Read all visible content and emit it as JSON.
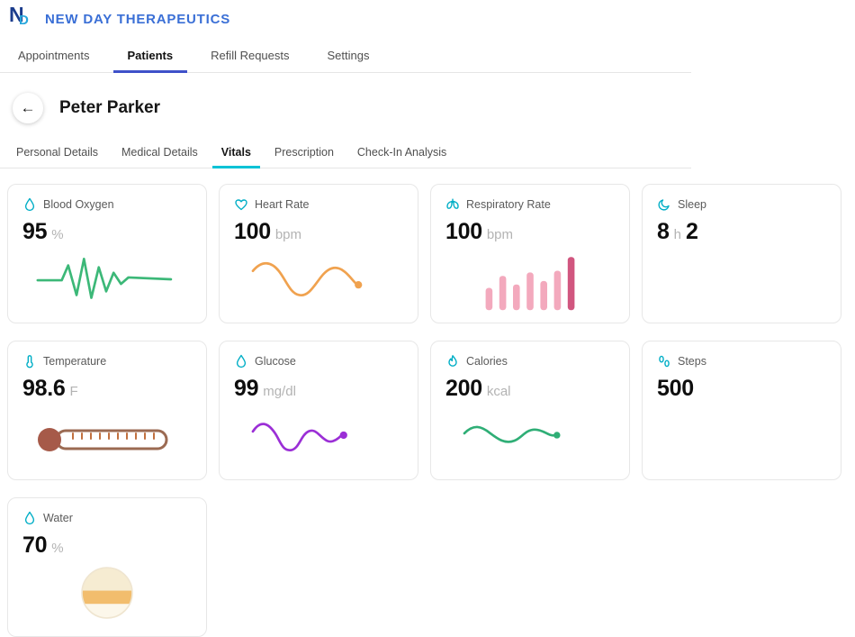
{
  "header": {
    "logo": {
      "n": "N",
      "d": "D"
    },
    "brand": "NEW DAY THERAPEUTICS"
  },
  "top_nav": {
    "items": [
      {
        "label": "Appointments",
        "active": false
      },
      {
        "label": "Patients",
        "active": true
      },
      {
        "label": "Refill Requests",
        "active": false
      },
      {
        "label": "Settings",
        "active": false
      }
    ]
  },
  "patient": {
    "back_glyph": "←",
    "name": "Peter Parker"
  },
  "sub_tabs": {
    "items": [
      {
        "label": "Personal Details",
        "active": false
      },
      {
        "label": "Medical Details",
        "active": false
      },
      {
        "label": "Vitals",
        "active": true
      },
      {
        "label": "Prescription",
        "active": false
      },
      {
        "label": "Check-In Analysis",
        "active": false
      }
    ]
  },
  "cards": [
    {
      "label": "Blood Oxygen",
      "value": "95",
      "unit": "%",
      "icon": "droplet-icon",
      "chart": "green-ecg-line"
    },
    {
      "label": "Heart Rate",
      "value": "100",
      "unit": "bpm",
      "icon": "heart-icon",
      "chart": "orange-wave-line"
    },
    {
      "label": "Respiratory Rate",
      "value": "100",
      "unit": "bpm",
      "icon": "lungs-icon",
      "chart": "pink-bars",
      "bars": [
        26,
        40,
        30,
        44,
        34,
        46,
        62
      ]
    },
    {
      "label": "Sleep",
      "value": "8",
      "unit": "h",
      "value2": "2",
      "unit2": "",
      "icon": "moon-icon"
    },
    {
      "label": "Temperature",
      "value": "98.6",
      "unit": "F",
      "icon": "thermometer-icon",
      "chart": "thermometer-graphic"
    },
    {
      "label": "Glucose",
      "value": "99",
      "unit": "mg/dl",
      "icon": "droplet-icon",
      "chart": "purple-wave-line"
    },
    {
      "label": "Calories",
      "value": "200",
      "unit": "kcal",
      "icon": "flame-icon",
      "chart": "green-wave-line"
    },
    {
      "label": "Steps",
      "value": "500",
      "unit": "",
      "icon": "steps-icon"
    },
    {
      "label": "Water",
      "value": "70",
      "unit": "%",
      "icon": "water-drop-icon",
      "chart": "water-cup-graphic"
    }
  ],
  "colors": {
    "brand_blue": "#3a6fd6",
    "logo_dark": "#1b3c8c",
    "logo_light": "#28a7dc",
    "nav_underline": "#3f51c9",
    "subtab_underline": "#00c2d6",
    "icon_teal": "#00aec6",
    "line_green": "#3cb878",
    "line_orange": "#f0a24f",
    "bar_pink": "#f3a9bd",
    "bar_pink_dark": "#d1567f",
    "line_purple": "#9b2fd6",
    "line_green2": "#2fae76",
    "thermo_brown": "#a65a49",
    "thermo_stem": "#9b6a52",
    "tick_orange": "#c2703f",
    "water_top": "#f6ecd2",
    "water_band": "#f2bd6d",
    "water_bottom": "#fcf7ea"
  }
}
